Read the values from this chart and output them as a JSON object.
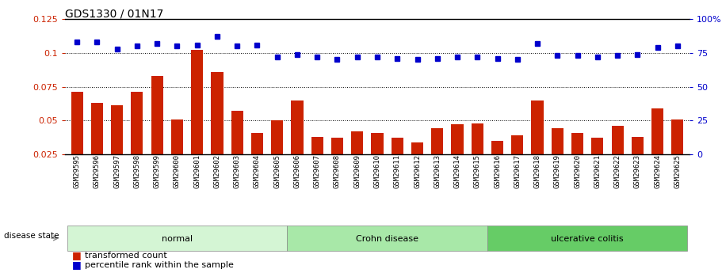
{
  "title": "GDS1330 / 01N17",
  "samples": [
    "GSM29595",
    "GSM29596",
    "GSM29597",
    "GSM29598",
    "GSM29599",
    "GSM29600",
    "GSM29601",
    "GSM29602",
    "GSM29603",
    "GSM29604",
    "GSM29605",
    "GSM29606",
    "GSM29607",
    "GSM29608",
    "GSM29609",
    "GSM29610",
    "GSM29611",
    "GSM29612",
    "GSM29613",
    "GSM29614",
    "GSM29615",
    "GSM29616",
    "GSM29617",
    "GSM29618",
    "GSM29619",
    "GSM29620",
    "GSM29621",
    "GSM29622",
    "GSM29623",
    "GSM29624",
    "GSM29625"
  ],
  "bar_values": [
    0.071,
    0.063,
    0.061,
    0.071,
    0.083,
    0.051,
    0.102,
    0.086,
    0.057,
    0.041,
    0.05,
    0.065,
    0.038,
    0.037,
    0.042,
    0.041,
    0.037,
    0.034,
    0.044,
    0.047,
    0.048,
    0.035,
    0.039,
    0.065,
    0.044,
    0.041,
    0.037,
    0.046,
    0.038,
    0.059,
    0.051
  ],
  "percentile_values": [
    83,
    83,
    78,
    80,
    82,
    80,
    81,
    87,
    80,
    81,
    72,
    74,
    72,
    70,
    72,
    72,
    71,
    70,
    71,
    72,
    72,
    71,
    70,
    82,
    73,
    73,
    72,
    73,
    74,
    79,
    80
  ],
  "groups": [
    {
      "label": "normal",
      "start": 0,
      "end": 10,
      "color": "#d4f5d4"
    },
    {
      "label": "Crohn disease",
      "start": 11,
      "end": 20,
      "color": "#a8e8a8"
    },
    {
      "label": "ulcerative colitis",
      "start": 21,
      "end": 30,
      "color": "#66cc66"
    }
  ],
  "bar_color": "#cc2200",
  "dot_color": "#0000cc",
  "left_ylim": [
    0.025,
    0.125
  ],
  "right_ylim": [
    0,
    100
  ],
  "left_yticks": [
    0.025,
    0.05,
    0.075,
    0.1,
    0.125
  ],
  "right_yticks": [
    0,
    25,
    50,
    75,
    100
  ],
  "grid_values": [
    0.05,
    0.075,
    0.1
  ],
  "background_color": "#ffffff",
  "title_fontsize": 10,
  "bar_width": 0.6
}
